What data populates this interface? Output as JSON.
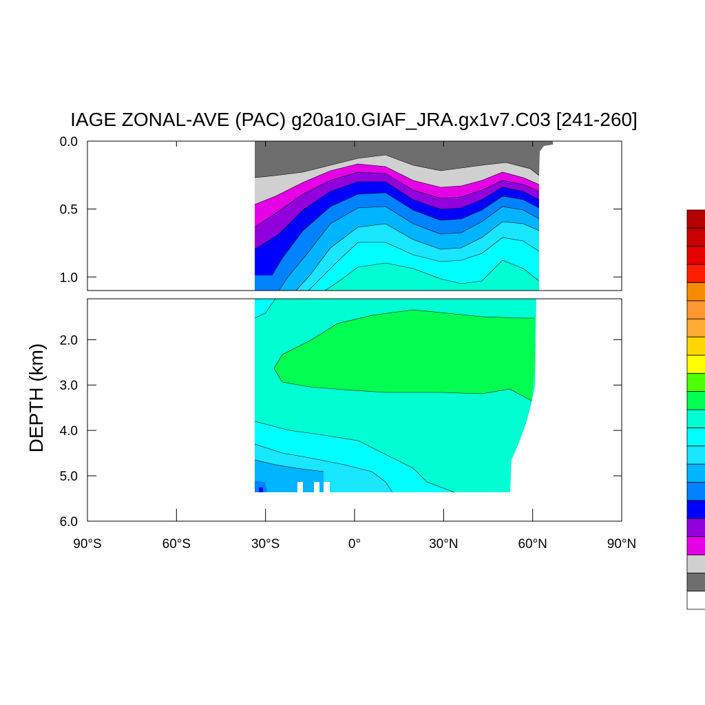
{
  "chart_data": {
    "type": "contour",
    "title": "IAGE ZONAL-AVE (PAC) g20a10.GIAF_JRA.gx1v7.C03 [241-260]",
    "xlabel": "",
    "ylabel": "DEPTH (km)",
    "x_ticks": [
      "90°S",
      "60°S",
      "30°S",
      "0°",
      "30°N",
      "60°N",
      "90°N"
    ],
    "x_tick_values": [
      -90,
      -60,
      -30,
      0,
      30,
      60,
      90
    ],
    "xlim": [
      -90,
      90
    ],
    "upper_panel": {
      "ylim": [
        0.0,
        1.1
      ],
      "y_ticks": [
        "0.0",
        "0.5",
        "1.0"
      ],
      "y_tick_values": [
        0.0,
        0.5,
        1.0
      ]
    },
    "lower_panel": {
      "ylim": [
        1.1,
        6.0
      ],
      "y_ticks": [
        "2.0",
        "3.0",
        "4.0",
        "5.0",
        "6.0"
      ],
      "y_tick_values": [
        2.0,
        3.0,
        4.0,
        5.0,
        6.0
      ]
    },
    "data_extent": {
      "lat_min": -34,
      "lat_max": 62
    },
    "colorbar": {
      "colors": [
        "#ffffff",
        "#6e6e6e",
        "#d0d0d0",
        "#e600e6",
        "#9100dc",
        "#0000ff",
        "#0082ff",
        "#00b4ff",
        "#19e6ff",
        "#00ffff",
        "#00ffd2",
        "#00ff50",
        "#50ff00",
        "#ffff00",
        "#ffd700",
        "#ffaa32",
        "#ff9632",
        "#f58c00",
        "#ff1e00",
        "#e60000",
        "#c80000",
        "#b40000"
      ]
    }
  }
}
